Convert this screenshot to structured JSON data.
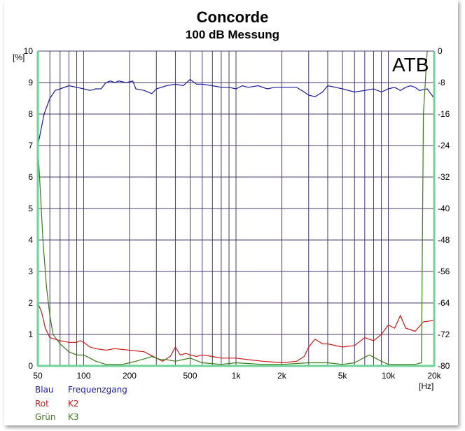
{
  "chart_data": {
    "type": "line",
    "title": "Concorde",
    "subtitle": "100 dB Messung",
    "watermark": "ATB",
    "xlabel": "[Hz]",
    "ylabel_left": "[%]",
    "x_scale": "log",
    "xlim": [
      50,
      20000
    ],
    "ylim_left": [
      0,
      10
    ],
    "ylim_right": [
      -80,
      0
    ],
    "grid": true,
    "x_ticks": [
      {
        "v": 50,
        "label": "50"
      },
      {
        "v": 100,
        "label": "100"
      },
      {
        "v": 200,
        "label": "200"
      },
      {
        "v": 500,
        "label": "500"
      },
      {
        "v": 1000,
        "label": "1k"
      },
      {
        "v": 2000,
        "label": "2k"
      },
      {
        "v": 5000,
        "label": "5k"
      },
      {
        "v": 10000,
        "label": "10k"
      },
      {
        "v": 20000,
        "label": "20k"
      }
    ],
    "y_ticks_left": [
      "0",
      "1",
      "2",
      "3",
      "4",
      "5",
      "6",
      "7",
      "8",
      "9",
      "10"
    ],
    "y_ticks_right": [
      "-80",
      "-72",
      "-64",
      "-56",
      "-48",
      "-40",
      "-32",
      "-24",
      "-16",
      "-8",
      "0"
    ],
    "colors": {
      "grid": "#4b3a6e",
      "frame": "#6fd39a",
      "blue": "#1a1aa0",
      "red": "#cc1a1a",
      "green": "#3c7a1a"
    },
    "legend": [
      {
        "color_name": "Blau",
        "label": "Frequenzgang",
        "color": "#1a1aa0"
      },
      {
        "color_name": "Rot",
        "label": "K2",
        "color": "#cc1a1a"
      },
      {
        "color_name": "Grün",
        "label": "K3",
        "color": "#3c7a1a"
      }
    ],
    "series": [
      {
        "name": "Frequenzgang",
        "axis": "right",
        "unit": "dB",
        "color": "#1a1aa0",
        "points": [
          [
            50,
            -24
          ],
          [
            55,
            -16
          ],
          [
            60,
            -12
          ],
          [
            65,
            -10
          ],
          [
            70,
            -9.6
          ],
          [
            80,
            -8.8
          ],
          [
            90,
            -9.2
          ],
          [
            100,
            -9.6
          ],
          [
            110,
            -10
          ],
          [
            120,
            -9.6
          ],
          [
            130,
            -9.6
          ],
          [
            140,
            -8
          ],
          [
            150,
            -7.6
          ],
          [
            160,
            -8
          ],
          [
            170,
            -7.6
          ],
          [
            190,
            -8
          ],
          [
            210,
            -7.6
          ],
          [
            220,
            -9.6
          ],
          [
            250,
            -10
          ],
          [
            280,
            -10.8
          ],
          [
            300,
            -9.6
          ],
          [
            350,
            -8.8
          ],
          [
            400,
            -8.4
          ],
          [
            450,
            -8.8
          ],
          [
            500,
            -7.2
          ],
          [
            550,
            -8.4
          ],
          [
            600,
            -8.4
          ],
          [
            700,
            -8.8
          ],
          [
            800,
            -9.2
          ],
          [
            900,
            -9.2
          ],
          [
            1000,
            -9.6
          ],
          [
            1100,
            -8.8
          ],
          [
            1200,
            -9.2
          ],
          [
            1400,
            -8.8
          ],
          [
            1600,
            -9.6
          ],
          [
            1800,
            -9.2
          ],
          [
            2000,
            -9.2
          ],
          [
            2500,
            -9.2
          ],
          [
            2800,
            -10.4
          ],
          [
            3000,
            -11.2
          ],
          [
            3300,
            -11.6
          ],
          [
            3700,
            -10.4
          ],
          [
            4000,
            -8.8
          ],
          [
            4500,
            -9.2
          ],
          [
            5000,
            -9.6
          ],
          [
            6000,
            -10.4
          ],
          [
            7000,
            -10
          ],
          [
            8000,
            -9.6
          ],
          [
            9000,
            -10.4
          ],
          [
            10000,
            -9.6
          ],
          [
            11000,
            -9.2
          ],
          [
            12000,
            -10
          ],
          [
            13000,
            -9.2
          ],
          [
            14000,
            -8.8
          ],
          [
            15000,
            -9.2
          ],
          [
            16000,
            -10
          ],
          [
            18000,
            -9.6
          ],
          [
            20000,
            -12
          ]
        ]
      },
      {
        "name": "K2",
        "axis": "left",
        "unit": "%",
        "color": "#cc1a1a",
        "points": [
          [
            50,
            2.0
          ],
          [
            53,
            1.7
          ],
          [
            56,
            1.2
          ],
          [
            60,
            0.9
          ],
          [
            65,
            0.85
          ],
          [
            70,
            0.8
          ],
          [
            80,
            0.75
          ],
          [
            90,
            0.75
          ],
          [
            95,
            0.8
          ],
          [
            100,
            0.75
          ],
          [
            110,
            0.6
          ],
          [
            120,
            0.55
          ],
          [
            140,
            0.5
          ],
          [
            160,
            0.55
          ],
          [
            200,
            0.5
          ],
          [
            250,
            0.45
          ],
          [
            300,
            0.25
          ],
          [
            330,
            0.15
          ],
          [
            370,
            0.3
          ],
          [
            400,
            0.6
          ],
          [
            430,
            0.35
          ],
          [
            470,
            0.4
          ],
          [
            500,
            0.35
          ],
          [
            550,
            0.3
          ],
          [
            600,
            0.35
          ],
          [
            700,
            0.3
          ],
          [
            800,
            0.25
          ],
          [
            1000,
            0.25
          ],
          [
            1200,
            0.2
          ],
          [
            1500,
            0.15
          ],
          [
            2000,
            0.1
          ],
          [
            2500,
            0.15
          ],
          [
            2800,
            0.3
          ],
          [
            3000,
            0.6
          ],
          [
            3300,
            0.85
          ],
          [
            3700,
            0.7
          ],
          [
            4000,
            0.7
          ],
          [
            5000,
            0.6
          ],
          [
            6000,
            0.65
          ],
          [
            7000,
            0.9
          ],
          [
            8000,
            0.8
          ],
          [
            9000,
            1.0
          ],
          [
            10000,
            1.3
          ],
          [
            11000,
            1.2
          ],
          [
            12000,
            1.6
          ],
          [
            13000,
            1.2
          ],
          [
            15000,
            1.1
          ],
          [
            17000,
            1.4
          ],
          [
            20000,
            1.45
          ]
        ]
      },
      {
        "name": "K3",
        "axis": "left",
        "unit": "%",
        "color": "#3c7a1a",
        "points": [
          [
            50,
            7.0
          ],
          [
            52,
            5.5
          ],
          [
            54,
            4.0
          ],
          [
            57,
            2.5
          ],
          [
            60,
            1.6
          ],
          [
            63,
            1.0
          ],
          [
            70,
            0.7
          ],
          [
            80,
            0.45
          ],
          [
            90,
            0.35
          ],
          [
            100,
            0.35
          ],
          [
            110,
            0.25
          ],
          [
            120,
            0.15
          ],
          [
            140,
            0.05
          ],
          [
            180,
            0.05
          ],
          [
            200,
            0.1
          ],
          [
            220,
            0.15
          ],
          [
            260,
            0.25
          ],
          [
            280,
            0.3
          ],
          [
            320,
            0.2
          ],
          [
            350,
            0.2
          ],
          [
            400,
            0.15
          ],
          [
            500,
            0.25
          ],
          [
            600,
            0.1
          ],
          [
            800,
            0.05
          ],
          [
            1000,
            0.1
          ],
          [
            1500,
            0.05
          ],
          [
            2000,
            0.05
          ],
          [
            3000,
            0.1
          ],
          [
            4000,
            0.1
          ],
          [
            5000,
            0.05
          ],
          [
            6000,
            0.1
          ],
          [
            7500,
            0.35
          ],
          [
            9000,
            0.15
          ],
          [
            10000,
            0.05
          ],
          [
            15000,
            0.05
          ],
          [
            16500,
            0.1
          ],
          [
            17000,
            8.0
          ],
          [
            18000,
            10
          ]
        ]
      }
    ]
  }
}
